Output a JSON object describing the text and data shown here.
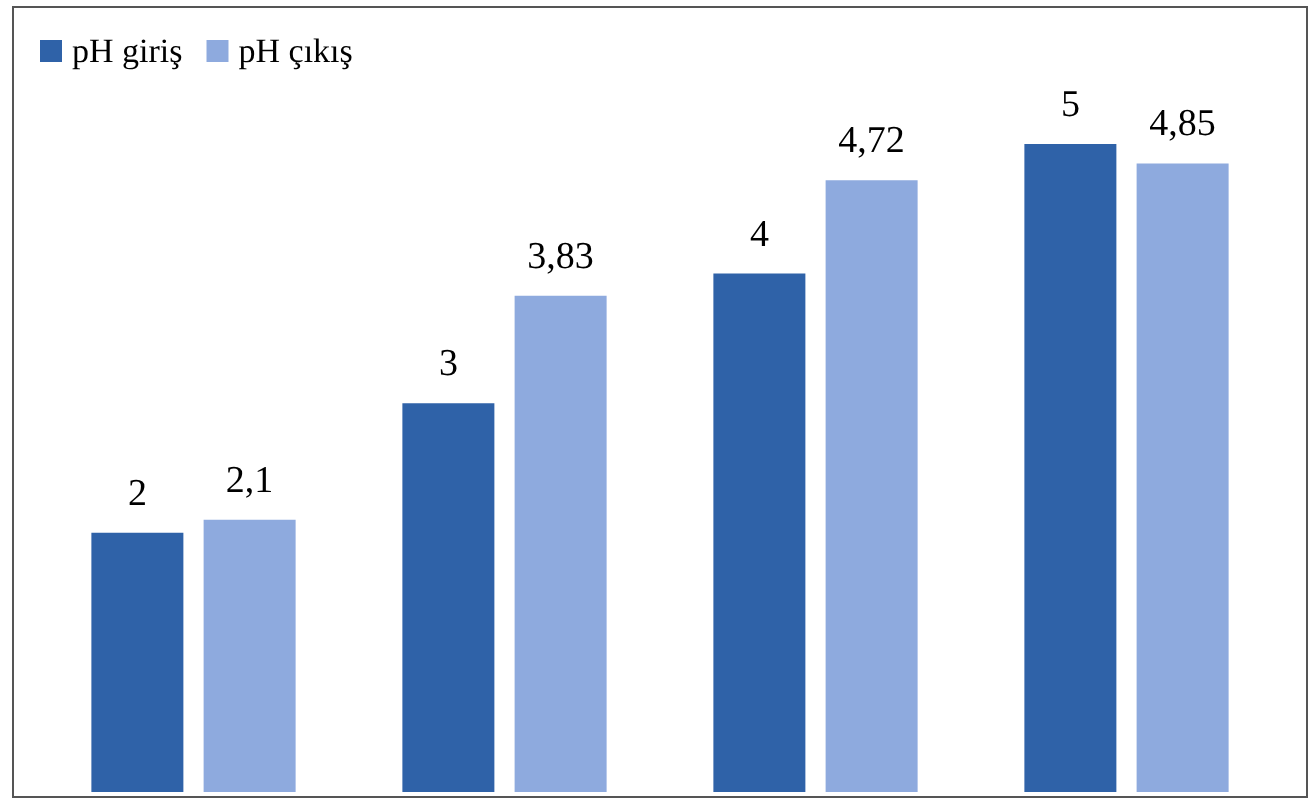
{
  "chart_data": {
    "type": "bar",
    "categories": [
      null,
      null,
      null,
      null
    ],
    "series": [
      {
        "name": "pH giriş",
        "color": "#2f62a8",
        "values": [
          2,
          3,
          4,
          5
        ],
        "value_labels": [
          "2",
          "3",
          "4",
          "5"
        ]
      },
      {
        "name": "pH çıkış",
        "color": "#8eaade",
        "values": [
          2.1,
          3.83,
          4.72,
          4.85
        ],
        "value_labels": [
          "2,1",
          "3,83",
          "4,72",
          "4,85"
        ]
      }
    ],
    "tick_labels": false,
    "grid": false,
    "legend": "top left"
  }
}
